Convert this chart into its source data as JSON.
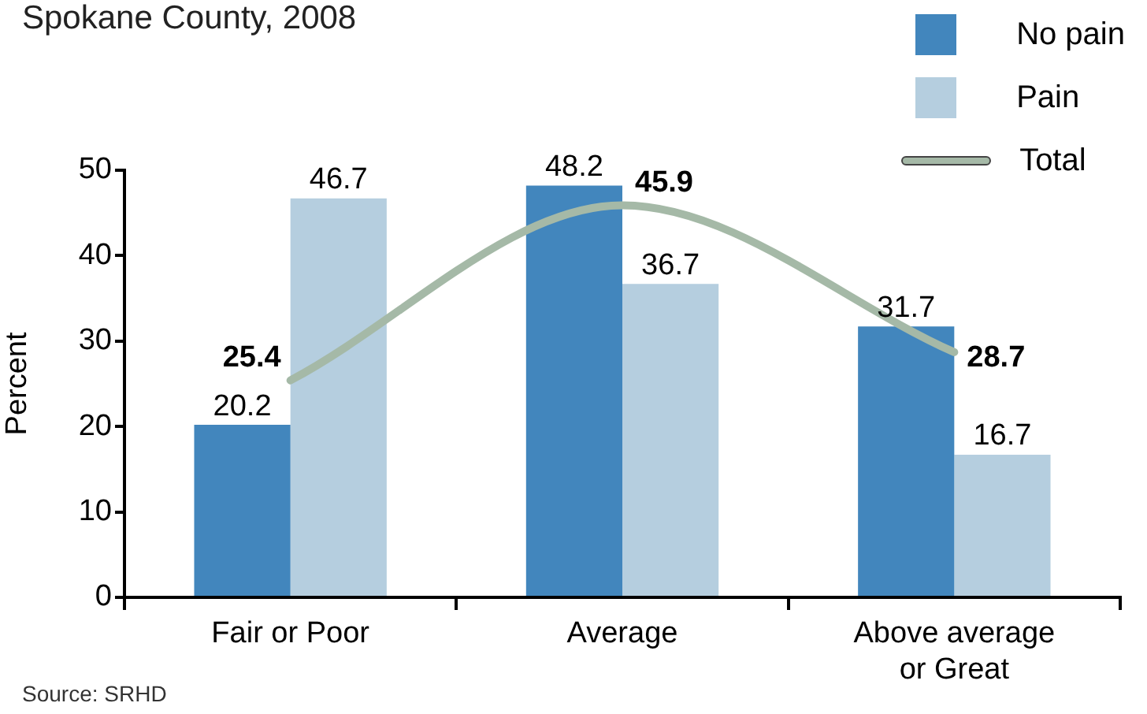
{
  "chart_data": {
    "type": "bar",
    "title": "Spokane County, 2008",
    "ylabel": "Percent",
    "categories": [
      "Fair or Poor",
      "Average",
      "Above average or Great"
    ],
    "series": [
      {
        "name": "No pain",
        "color": "#4286bd",
        "values": [
          20.2,
          48.2,
          31.7
        ]
      },
      {
        "name": "Pain",
        "color": "#b5cedf",
        "values": [
          46.7,
          36.7,
          16.7
        ]
      },
      {
        "name": "Total",
        "type": "line",
        "color": "#a5b9a7",
        "values": [
          25.4,
          45.9,
          28.7
        ]
      }
    ],
    "ylim": [
      0,
      50
    ],
    "yticks": [
      0,
      10,
      20,
      30,
      40,
      50
    ],
    "grid": false,
    "legend": "top right",
    "data_labels": true,
    "annotations": [
      "Source: SRHD"
    ]
  }
}
